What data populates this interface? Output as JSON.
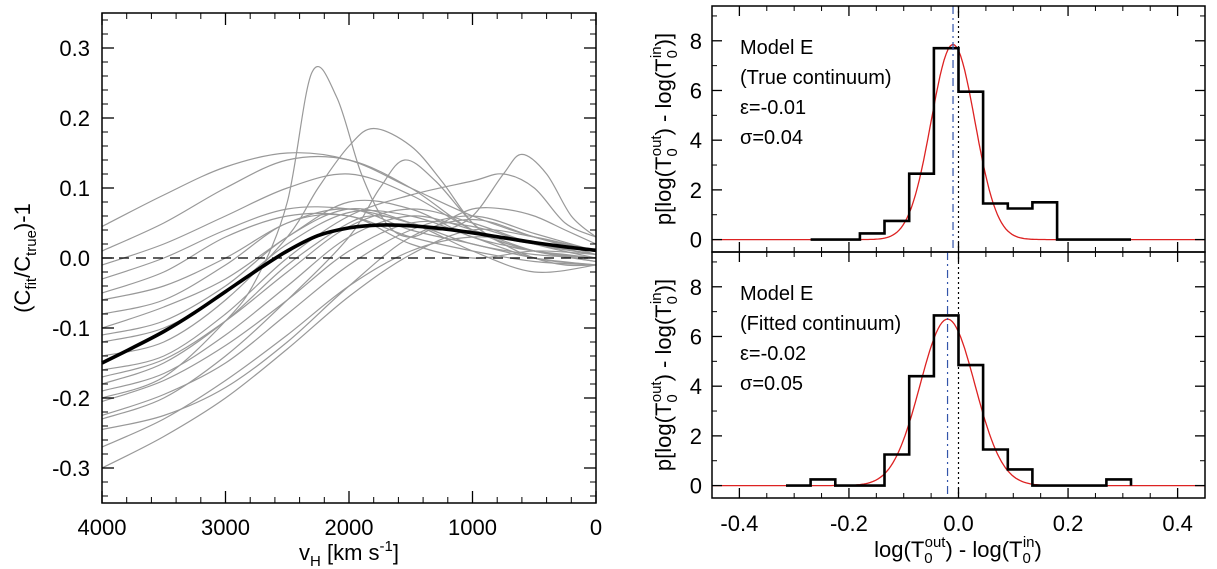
{
  "chart_data": [
    {
      "type": "line",
      "xlabel": "v",
      "xlabel_sub": "H",
      "xlabel_units": " [km s",
      "xlabel_units_sup": "-1",
      "xlabel_units_end": "]",
      "ylabel_pre": "(C",
      "ylabel_sub1": "fit",
      "ylabel_mid": "/C",
      "ylabel_sub2": "true",
      "ylabel_post": ")-1",
      "xlim": [
        4000,
        0
      ],
      "ylim": [
        -0.35,
        0.35
      ],
      "xticks": [
        4000,
        3000,
        2000,
        1000,
        0
      ],
      "xtick_labels": [
        "4000",
        "3000",
        "2000",
        "1000",
        "0"
      ],
      "yticks": [
        -0.3,
        -0.2,
        -0.1,
        0.0,
        0.1,
        0.2,
        0.3
      ],
      "ytick_labels": [
        "-0.3",
        "-0.2",
        "-0.1",
        "0.0",
        "0.1",
        "0.2",
        "0.3"
      ],
      "reference_line": {
        "y": 0.0,
        "style": "dashed"
      },
      "mean_curve": {
        "color": "#000000",
        "x": [
          4000,
          3750,
          3500,
          3250,
          3000,
          2750,
          2500,
          2250,
          2000,
          1750,
          1500,
          1250,
          1000,
          750,
          500,
          250,
          0
        ],
        "y": [
          -0.15,
          -0.128,
          -0.105,
          -0.078,
          -0.048,
          -0.018,
          0.01,
          0.032,
          0.043,
          0.047,
          0.046,
          0.042,
          0.036,
          0.029,
          0.022,
          0.016,
          0.011
        ]
      },
      "individual_curves_color": "#999999",
      "individual_curves": [
        {
          "x": [
            4000,
            3500,
            3000,
            2500,
            2000,
            1500,
            1000,
            500,
            0
          ],
          "y": [
            -0.3,
            -0.255,
            -0.2,
            -0.13,
            -0.055,
            0.005,
            0.04,
            0.03,
            0.01
          ]
        },
        {
          "x": [
            4000,
            3500,
            3000,
            2500,
            2000,
            1500,
            1000,
            500,
            0
          ],
          "y": [
            -0.27,
            -0.23,
            -0.175,
            -0.11,
            -0.04,
            0.01,
            0.03,
            0.02,
            0.005
          ]
        },
        {
          "x": [
            4000,
            3500,
            3000,
            2500,
            2000,
            1500,
            1000,
            500,
            0
          ],
          "y": [
            -0.245,
            -0.225,
            -0.185,
            -0.12,
            -0.04,
            0.03,
            0.055,
            0.03,
            0.005
          ]
        },
        {
          "x": [
            4000,
            3500,
            3000,
            2500,
            2000,
            1500,
            1000,
            500,
            0
          ],
          "y": [
            -0.225,
            -0.195,
            -0.15,
            -0.08,
            -0.01,
            0.04,
            0.06,
            0.035,
            0.01
          ]
        },
        {
          "x": [
            4000,
            3500,
            3000,
            2500,
            2000,
            1500,
            1000,
            500,
            0
          ],
          "y": [
            -0.205,
            -0.175,
            -0.125,
            -0.06,
            0.01,
            0.05,
            0.045,
            0.02,
            0.005
          ]
        },
        {
          "x": [
            4000,
            3500,
            3000,
            2500,
            2000,
            1500,
            1000,
            500,
            0
          ],
          "y": [
            -0.19,
            -0.165,
            -0.11,
            -0.04,
            0.03,
            0.06,
            0.04,
            0.01,
            -0.005
          ]
        },
        {
          "x": [
            4000,
            3500,
            3000,
            2500,
            2000,
            1500,
            1000,
            500,
            0
          ],
          "y": [
            -0.17,
            -0.145,
            -0.09,
            -0.02,
            0.045,
            0.07,
            0.05,
            0.02,
            0.0
          ]
        },
        {
          "x": [
            4000,
            3500,
            3000,
            2500,
            2000,
            1500,
            1000,
            500,
            0
          ],
          "y": [
            -0.12,
            -0.1,
            -0.05,
            0.02,
            0.065,
            0.06,
            0.03,
            0.0,
            -0.01
          ]
        },
        {
          "x": [
            4000,
            3500,
            3000,
            2500,
            2000,
            1500,
            1000,
            500,
            0
          ],
          "y": [
            -0.1,
            -0.07,
            -0.03,
            0.03,
            0.08,
            0.07,
            0.03,
            0.01,
            -0.005
          ]
        },
        {
          "x": [
            4000,
            3500,
            3000,
            2500,
            2000,
            1500,
            1000,
            500,
            0
          ],
          "y": [
            -0.08,
            -0.06,
            -0.01,
            0.05,
            0.06,
            0.02,
            0.0,
            0.01,
            0.005
          ]
        },
        {
          "x": [
            4000,
            3500,
            3000,
            2500,
            2000,
            1500,
            1000,
            500,
            0
          ],
          "y": [
            -0.06,
            -0.04,
            0.0,
            0.05,
            0.07,
            0.04,
            0.02,
            0.0,
            -0.01
          ]
        },
        {
          "x": [
            4000,
            3500,
            3000,
            2500,
            2000,
            1500,
            1000,
            500,
            0
          ],
          "y": [
            -0.05,
            -0.02,
            0.03,
            0.06,
            0.06,
            0.03,
            0.01,
            -0.005,
            -0.01
          ]
        },
        {
          "x": [
            4000,
            3500,
            3000,
            2500,
            2000,
            1500,
            1000,
            500,
            0
          ],
          "y": [
            -0.03,
            0.0,
            0.04,
            0.07,
            0.07,
            0.05,
            0.02,
            0.005,
            0.0
          ]
        },
        {
          "x": [
            4000,
            3500,
            3000,
            2500,
            2000,
            1500,
            1000,
            500,
            0
          ],
          "y": [
            -0.01,
            0.02,
            0.06,
            0.1,
            0.12,
            0.09,
            0.04,
            0.01,
            0.0
          ]
        },
        {
          "x": [
            4000,
            3500,
            3000,
            2500,
            2000,
            1500,
            1000,
            500,
            0
          ],
          "y": [
            0.01,
            0.05,
            0.1,
            0.14,
            0.14,
            0.1,
            0.04,
            0.01,
            0.0
          ]
        },
        {
          "x": [
            4000,
            3500,
            3000,
            2500,
            2000,
            1500,
            1000,
            500,
            0
          ],
          "y": [
            0.045,
            0.09,
            0.13,
            0.15,
            0.14,
            0.1,
            0.06,
            0.03,
            0.01
          ]
        },
        {
          "x": [
            4000,
            3500,
            3000,
            2750,
            2500,
            2300,
            2100,
            1900,
            1700,
            1500,
            1250,
            1000,
            750,
            500,
            250,
            0
          ],
          "y": [
            -0.2,
            -0.17,
            -0.09,
            -0.03,
            0.08,
            0.265,
            0.23,
            0.12,
            0.05,
            0.03,
            0.05,
            0.07,
            0.07,
            0.06,
            0.04,
            0.02
          ]
        },
        {
          "x": [
            4000,
            3500,
            3000,
            2500,
            2250,
            2000,
            1800,
            1500,
            1250,
            1000,
            750,
            500,
            250,
            0
          ],
          "y": [
            -0.14,
            -0.12,
            -0.06,
            0.03,
            0.1,
            0.16,
            0.185,
            0.16,
            0.11,
            0.05,
            0.02,
            0.01,
            0.005,
            0.0
          ]
        },
        {
          "x": [
            4000,
            3500,
            3000,
            2500,
            2000,
            1750,
            1500,
            1250,
            1000,
            750,
            600,
            400,
            200,
            0
          ],
          "y": [
            -0.18,
            -0.15,
            -0.09,
            -0.01,
            0.05,
            0.06,
            0.05,
            0.04,
            0.06,
            0.12,
            0.148,
            0.12,
            0.06,
            0.03
          ]
        },
        {
          "x": [
            4000,
            3500,
            3000,
            2500,
            2000,
            1750,
            1550,
            1300,
            1000,
            750,
            500,
            250,
            0
          ],
          "y": [
            -0.23,
            -0.2,
            -0.14,
            -0.06,
            0.03,
            0.1,
            0.14,
            0.11,
            0.05,
            0.02,
            0.0,
            -0.01,
            -0.01
          ]
        },
        {
          "x": [
            4000,
            3500,
            3000,
            2500,
            2000,
            1500,
            1000,
            750,
            500,
            250,
            0
          ],
          "y": [
            -0.16,
            -0.14,
            -0.08,
            0.0,
            0.06,
            0.09,
            0.11,
            0.12,
            0.1,
            0.05,
            0.03
          ]
        },
        {
          "x": [
            4000,
            3500,
            3000,
            2500,
            2000,
            1500,
            1000,
            500,
            0
          ],
          "y": [
            -0.11,
            -0.09,
            -0.04,
            0.03,
            0.07,
            0.05,
            0.01,
            -0.02,
            -0.01
          ]
        }
      ]
    },
    {
      "type": "bar",
      "histogram": true,
      "annotation": [
        "Model E",
        "(True continuum)",
        "ε=-0.01",
        "σ=0.04"
      ],
      "ylabel_parts": [
        "p[log(T",
        "0",
        "out",
        ") - log(T",
        "0",
        "in",
        ")]"
      ],
      "xlim": [
        -0.45,
        0.45
      ],
      "ylim": [
        -0.5,
        9.4
      ],
      "yticks": [
        0,
        2,
        4,
        6,
        8
      ],
      "ytick_labels": [
        "0",
        "2",
        "4",
        "6",
        "8"
      ],
      "bin_edges": [
        -0.27,
        -0.225,
        -0.18,
        -0.135,
        -0.09,
        -0.045,
        0.0,
        0.045,
        0.09,
        0.135,
        0.18,
        0.225,
        0.27,
        0.315
      ],
      "values": [
        0,
        0,
        0.25,
        0.75,
        2.65,
        7.7,
        5.95,
        1.45,
        1.25,
        1.5,
        0,
        0,
        0
      ],
      "gaussian": {
        "color": "#dd2222",
        "mean": -0.01,
        "sigma": 0.04,
        "peak": 7.85
      },
      "mean_line": {
        "x": -0.01,
        "style": "dash-dot",
        "color": "#3355aa"
      },
      "zero_line": {
        "x": 0.0,
        "style": "dotted"
      }
    },
    {
      "type": "bar",
      "histogram": true,
      "annotation": [
        "Model E",
        "(Fitted continuum)",
        "ε=-0.02",
        "σ=0.05"
      ],
      "ylabel_parts": [
        "p[log(T",
        "0",
        "out",
        ") - log(T",
        "0",
        "in",
        ")]"
      ],
      "xlabel_parts": [
        "log(T",
        "0",
        "out",
        ") - log(T",
        "0",
        "in",
        ")"
      ],
      "xlim": [
        -0.45,
        0.45
      ],
      "ylim": [
        -0.5,
        9.4
      ],
      "xticks": [
        -0.4,
        -0.2,
        0.0,
        0.2,
        0.4
      ],
      "xtick_labels": [
        "-0.4",
        "-0.2",
        "0.0",
        "0.2",
        "0.4"
      ],
      "yticks": [
        0,
        2,
        4,
        6,
        8
      ],
      "ytick_labels": [
        "0",
        "2",
        "4",
        "6",
        "8"
      ],
      "bin_edges": [
        -0.315,
        -0.27,
        -0.225,
        -0.18,
        -0.135,
        -0.09,
        -0.045,
        0.0,
        0.045,
        0.09,
        0.135,
        0.18,
        0.225,
        0.27,
        0.315
      ],
      "values": [
        0,
        0.25,
        0,
        0,
        1.25,
        4.4,
        6.85,
        4.85,
        1.45,
        0.65,
        0,
        0,
        0,
        0.25
      ],
      "gaussian": {
        "color": "#dd2222",
        "mean": -0.02,
        "sigma": 0.05,
        "peak": 6.7
      },
      "mean_line": {
        "x": -0.02,
        "style": "dash-dot",
        "color": "#3355aa"
      },
      "zero_line": {
        "x": 0.0,
        "style": "dotted"
      }
    }
  ]
}
